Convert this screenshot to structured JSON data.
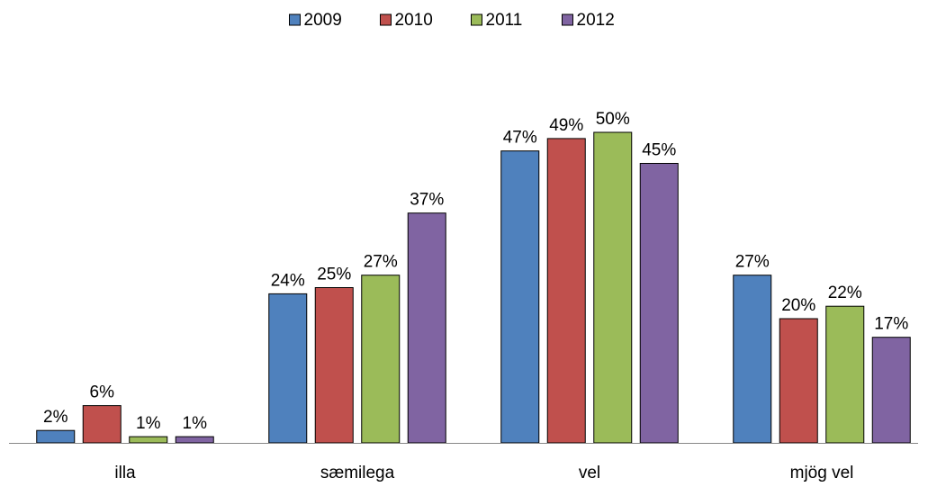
{
  "chart_data": {
    "type": "bar",
    "categories": [
      "illa",
      "sæmilega",
      "vel",
      "mjög vel"
    ],
    "series": [
      {
        "name": "2009",
        "color": "#4f81bd",
        "values": [
          2,
          24,
          47,
          27
        ],
        "value_labels": [
          "2%",
          "24%",
          "47%",
          "27%"
        ]
      },
      {
        "name": "2010",
        "color": "#c0504d",
        "values": [
          6,
          25,
          49,
          20
        ],
        "value_labels": [
          "6%",
          "25%",
          "49%",
          "20%"
        ]
      },
      {
        "name": "2011",
        "color": "#9bbb59",
        "values": [
          1,
          27,
          50,
          22
        ],
        "value_labels": [
          "1%",
          "27%",
          "50%",
          "22%"
        ]
      },
      {
        "name": "2012",
        "color": "#8064a2",
        "values": [
          1,
          37,
          45,
          17
        ],
        "value_labels": [
          "1%",
          "37%",
          "45%",
          "17%"
        ]
      }
    ],
    "legend": "top"
  }
}
